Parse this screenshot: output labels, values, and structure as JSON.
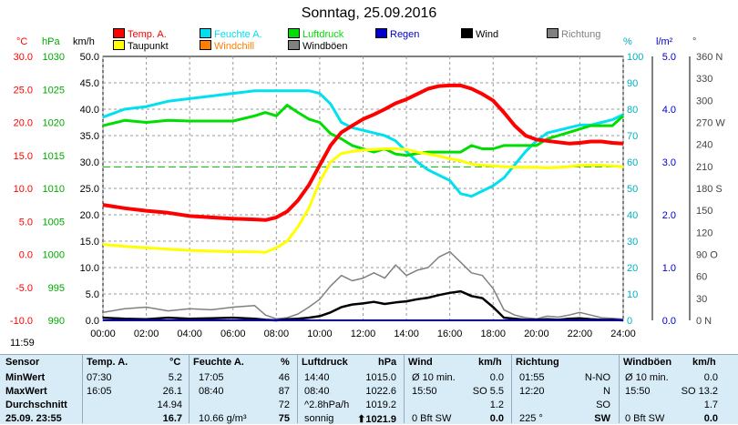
{
  "title": "Sonntag, 25.09.2016",
  "legend": [
    {
      "label": "Temp. A.",
      "color": "#ff0000"
    },
    {
      "label": "Feuchte A.",
      "color": "#00e0f0"
    },
    {
      "label": "Luftdruck",
      "color": "#00dd00"
    },
    {
      "label": "Regen",
      "color": "#0000cc"
    },
    {
      "label": "Wind",
      "color": "#000000"
    },
    {
      "label": "Richtung",
      "color": "#808080"
    },
    {
      "label": "Taupunkt",
      "color": "#ffff00"
    },
    {
      "label": "Windchill",
      "color": "#ff8000"
    },
    {
      "label": "Windböen",
      "color": "#808080"
    }
  ],
  "units": {
    "c": "°C",
    "hpa": "hPa",
    "kmh": "km/h",
    "pct": "%",
    "lm2": "l/m²",
    "deg": "°"
  },
  "axes": {
    "temp": [
      "30.0",
      "25.0",
      "20.0",
      "15.0",
      "10.0",
      "5.0",
      "0.0",
      "-5.0",
      "-10.0"
    ],
    "press": [
      "1030",
      "1025",
      "1020",
      "1015",
      "1010",
      "1005",
      "1000",
      "995",
      "990"
    ],
    "wind": [
      "50.0",
      "45.0",
      "40.0",
      "35.0",
      "30.0",
      "25.0",
      "20.0",
      "15.0",
      "10.0",
      "5.0",
      "0.0"
    ],
    "hum": [
      "100",
      "90",
      "80",
      "70",
      "60",
      "50",
      "40",
      "30",
      "20",
      "10",
      "0"
    ],
    "rain": [
      "5.0",
      "4.0",
      "3.0",
      "2.0",
      "1.0",
      "0.0"
    ],
    "dir": [
      "360 N",
      "330",
      "300",
      "270 W",
      "240",
      "210",
      "180 S",
      "150",
      "120",
      "90 O",
      "60",
      "30",
      "0 N"
    ],
    "x": [
      "00:00",
      "02:00",
      "04:00",
      "06:00",
      "08:00",
      "10:00",
      "12:00",
      "14:00",
      "16:00",
      "18:00",
      "20:00",
      "22:00",
      "24:00"
    ]
  },
  "clock": "11:59",
  "chart_data": {
    "type": "line",
    "x_hours": [
      0,
      1,
      2,
      3,
      4,
      5,
      6,
      7,
      7.5,
      8,
      8.5,
      9,
      9.5,
      10,
      10.5,
      11,
      11.5,
      12,
      12.5,
      13,
      13.5,
      14,
      14.5,
      15,
      15.5,
      16,
      16.5,
      17,
      17.5,
      18,
      18.5,
      19,
      19.5,
      20,
      20.5,
      21,
      21.5,
      22,
      22.5,
      23,
      23.5,
      24
    ],
    "series": [
      {
        "name": "Temp. A.",
        "axis": "temp",
        "color": "#ff0000",
        "values": [
          7.5,
          7,
          6.6,
          6.3,
          5.8,
          5.6,
          5.4,
          5.3,
          5.2,
          5.6,
          6.5,
          8.2,
          10.5,
          13.5,
          16.5,
          18.5,
          19.5,
          20.5,
          21.2,
          22,
          22.9,
          23.5,
          24.3,
          25.1,
          25.5,
          25.6,
          25.6,
          25.1,
          24.3,
          23.3,
          21.5,
          19.5,
          18,
          17.4,
          17.2,
          17,
          16.8,
          16.9,
          17.1,
          17.1,
          16.9,
          16.8
        ]
      },
      {
        "name": "Taupunkt",
        "axis": "temp",
        "color": "#ffff00",
        "values": [
          1.5,
          1.2,
          1.0,
          0.8,
          0.6,
          0.5,
          0.4,
          0.4,
          0.3,
          1.0,
          2.0,
          4.2,
          7.0,
          11.0,
          14.0,
          15.3,
          15.6,
          15.8,
          15.9,
          16,
          16,
          15.9,
          15.5,
          15.2,
          14.9,
          14.5,
          14.2,
          13.7,
          13.5,
          13.4,
          13.3,
          13.2,
          13.2,
          13.2,
          13.1,
          13.2,
          13.3,
          13.5,
          13.5,
          13.5,
          13.4,
          13.3
        ]
      },
      {
        "name": "Feuchte A.",
        "axis": "hum",
        "color": "#00e0f0",
        "values": [
          77,
          80,
          81,
          83,
          84,
          85,
          86,
          87,
          87,
          87,
          87,
          87,
          87,
          86,
          82,
          75,
          73,
          72,
          71,
          70,
          68,
          64,
          60,
          57,
          55,
          53,
          48,
          47,
          49,
          51,
          54,
          59,
          64,
          68,
          71,
          72,
          73,
          74,
          74,
          75,
          76,
          78
        ]
      },
      {
        "name": "Luftdruck",
        "axis": "press",
        "color": "#00dd00",
        "values": [
          1019.5,
          1020.3,
          1020,
          1020.3,
          1020.2,
          1020.2,
          1020.2,
          1021,
          1021.5,
          1021,
          1022.6,
          1021.5,
          1020.5,
          1020,
          1018.3,
          1017.5,
          1016.5,
          1016,
          1015.5,
          1016,
          1015.2,
          1015,
          1015.3,
          1015.5,
          1015.5,
          1015.5,
          1015.5,
          1016.5,
          1016,
          1016,
          1016.5,
          1016.5,
          1016.5,
          1016.5,
          1017.5,
          1018,
          1018.5,
          1019,
          1019.5,
          1019.5,
          1019.5,
          1021
        ]
      },
      {
        "name": "Wind",
        "axis": "wind",
        "color": "#000000",
        "values": [
          0.5,
          0.3,
          0.2,
          0.5,
          0.3,
          0.4,
          0.5,
          0.3,
          0.1,
          0,
          0.2,
          0.3,
          0.5,
          0.8,
          1.5,
          2.5,
          3,
          3.2,
          3.5,
          3.1,
          3.4,
          3.6,
          4,
          4.3,
          4.8,
          5.2,
          5.5,
          4.6,
          4.2,
          2.5,
          0.5,
          0.3,
          0.1,
          0.1,
          0.2,
          0.1,
          0.3,
          0.4,
          0.2,
          0.1,
          0.1,
          0
        ]
      },
      {
        "name": "Windböen",
        "axis": "wind",
        "color": "#808080",
        "values": [
          1.5,
          2.2,
          2.5,
          1.8,
          2.2,
          2,
          2.5,
          2.8,
          1,
          0.3,
          0.5,
          1.2,
          2.5,
          4,
          6.5,
          8.5,
          7.5,
          8,
          9,
          8,
          10.5,
          8.5,
          9.5,
          10,
          12,
          13,
          11,
          9,
          8.5,
          6,
          2,
          1,
          0.5,
          0.3,
          0.8,
          0.6,
          1,
          1.5,
          1,
          0.5,
          0.4,
          0.2
        ]
      },
      {
        "name": "Regen",
        "axis": "rain",
        "color": "#0000cc",
        "values": [
          0,
          0,
          0,
          0,
          0,
          0,
          0,
          0,
          0,
          0,
          0,
          0,
          0,
          0,
          0,
          0,
          0,
          0,
          0,
          0,
          0,
          0,
          0,
          0,
          0,
          0,
          0,
          0,
          0,
          0,
          0,
          0,
          0,
          0,
          0,
          0,
          0,
          0,
          0,
          0,
          0,
          0
        ]
      }
    ],
    "ylim_temp": [
      -10,
      30
    ],
    "ylim_press": [
      990,
      1030
    ],
    "ylim_wind": [
      0,
      50
    ],
    "ylim_hum": [
      0,
      100
    ],
    "ylim_rain": [
      0,
      5
    ],
    "ylim_dir": [
      0,
      360
    ],
    "xlim": [
      0,
      24
    ],
    "grid": true
  },
  "table": {
    "headers": {
      "sensor": "Sensor",
      "temp": "Temp. A.",
      "temp_u": "°C",
      "hum": "Feuchte A.",
      "hum_u": "%",
      "press": "Luftdruck",
      "press_u": "hPa",
      "wind": "Wind",
      "wind_u": "km/h",
      "dir": "Richtung",
      "gust": "Windböen",
      "gust_u": "km/h"
    },
    "rows": [
      {
        "label": "MinWert",
        "temp_t": "07:30",
        "temp_v": "5.2",
        "hum_t": "17:05",
        "hum_v": "46",
        "press_t": "14:40",
        "press_v": "1015.0",
        "wind_t": "Ø 10 min.",
        "wind_v": "0.0",
        "dir_t": "01:55",
        "dir_v": "N-NO",
        "gust_t": "Ø 10 min.",
        "gust_v": "0.0"
      },
      {
        "label": "MaxWert",
        "temp_t": "16:05",
        "temp_v": "26.1",
        "hum_t": "08:40",
        "hum_v": "87",
        "press_t": "08:40",
        "press_v": "1022.6",
        "wind_t": "15:50",
        "wind_v": "SO 5.5",
        "dir_t": "12:20",
        "dir_v": "N",
        "gust_t": "15:50",
        "gust_v": "SO 13.2"
      },
      {
        "label": "Durchschnitt",
        "temp_t": "",
        "temp_v": "14.94",
        "hum_t": "",
        "hum_v": "72",
        "press_t": "^2.8hPa/h",
        "press_v": "1019.2",
        "wind_t": "",
        "wind_v": "1.2",
        "dir_t": "",
        "dir_v": "SO",
        "gust_t": "",
        "gust_v": "1.7"
      },
      {
        "label": "25.09. 23:55",
        "temp_t": "",
        "temp_v": "16.7",
        "hum_t": "10.66 g/m³",
        "hum_v": "75",
        "press_t": "sonnig",
        "press_v": "⬆1021.9",
        "wind_t": "0 Bft SW",
        "wind_v": "0.0",
        "dir_t": "225 °",
        "dir_v": "SW",
        "gust_t": "0 Bft SW",
        "gust_v": "0.0"
      }
    ]
  }
}
